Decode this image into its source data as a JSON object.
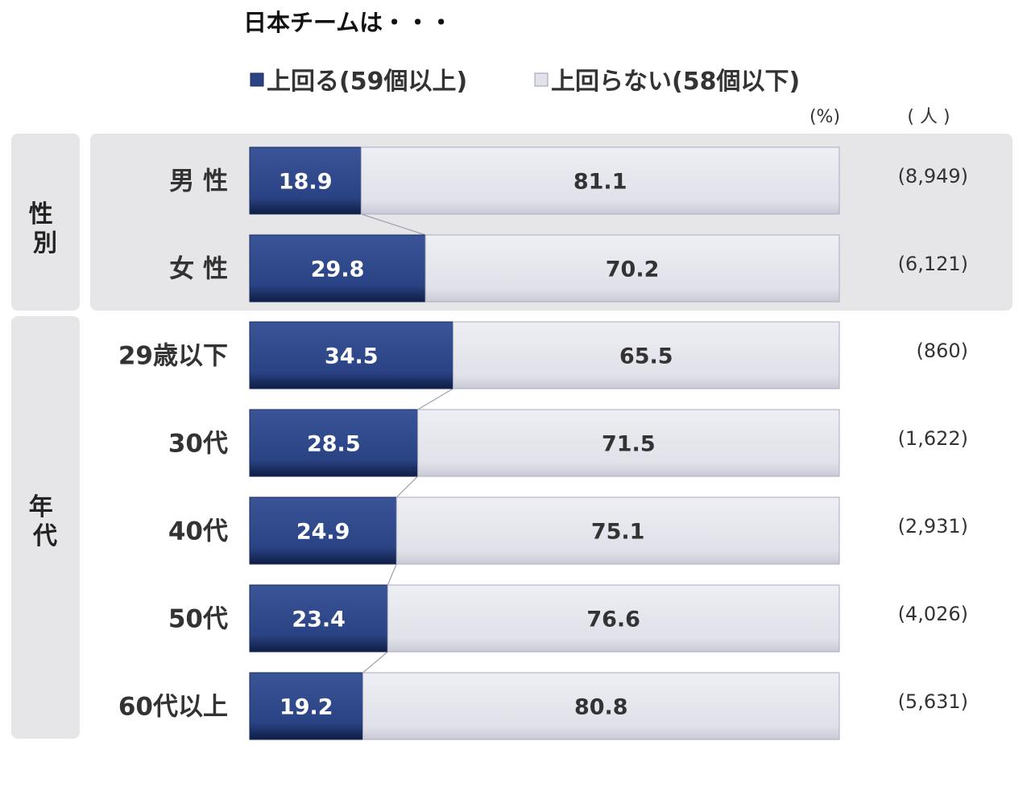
{
  "chart_data": {
    "type": "bar",
    "orientation": "horizontal",
    "stacked": true,
    "title": "日本チームは・・・",
    "unit_percent": "(%)",
    "unit_count": "( 人 )",
    "groups": [
      {
        "label": "性別",
        "categories": [
          0,
          1
        ]
      },
      {
        "label": "年代",
        "categories": [
          2,
          3,
          4,
          5,
          6
        ]
      }
    ],
    "categories": [
      "男 性",
      "女 性",
      "29歳以下",
      "30代",
      "40代",
      "50代",
      "60代以上"
    ],
    "counts": [
      "(8,949)",
      "(6,121)",
      "(860)",
      "(1,622)",
      "(2,931)",
      "(4,026)",
      "(5,631)"
    ],
    "series": [
      {
        "name": "上回る(59個以上)",
        "color": "#2a4384",
        "values": [
          18.9,
          29.8,
          34.5,
          28.5,
          24.9,
          23.4,
          19.2
        ]
      },
      {
        "name": "上回らない(58個以下)",
        "color": "#e2e3ea",
        "values": [
          81.1,
          70.2,
          65.5,
          71.5,
          75.1,
          76.6,
          80.8
        ]
      }
    ],
    "xlim": [
      0,
      100
    ],
    "legend_position": "top"
  }
}
